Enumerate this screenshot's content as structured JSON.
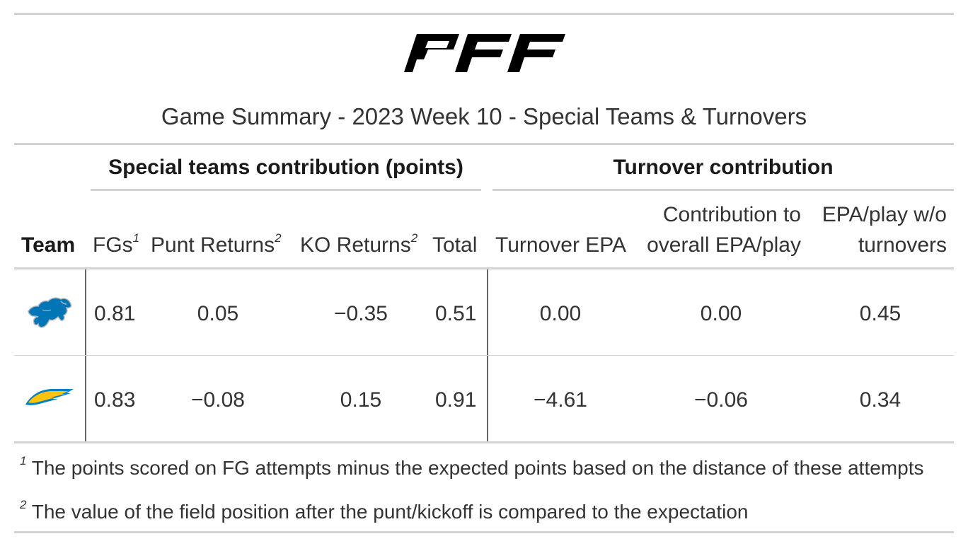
{
  "brand": {
    "logo_text": "PFF"
  },
  "title": "Game Summary - 2023 Week 10 - Special Teams & Turnovers",
  "spanners": {
    "special_teams": "Special teams contribution (points)",
    "turnover": "Turnover contribution"
  },
  "columns": {
    "team": "Team",
    "fgs": "FGs",
    "fgs_note": "1",
    "punt_returns": "Punt Returns",
    "punt_returns_note": "2",
    "ko_returns": "KO Returns",
    "ko_returns_note": "2",
    "total": "Total",
    "turnover_epa": "Turnover EPA",
    "contribution_line1": "Contribution to",
    "contribution_line2": "overall EPA/play",
    "epa_wo_line1": "EPA/play w/o",
    "epa_wo_line2": "turnovers"
  },
  "rows": [
    {
      "team_icon": "detroit-lions-logo",
      "fgs": "0.81",
      "punt_returns": "0.05",
      "ko_returns": "−0.35",
      "total": "0.51",
      "turnover_epa": "0.00",
      "contribution": "0.00",
      "epa_wo": "0.45"
    },
    {
      "team_icon": "los-angeles-chargers-logo",
      "fgs": "0.83",
      "punt_returns": "−0.08",
      "ko_returns": "0.15",
      "total": "0.91",
      "turnover_epa": "−4.61",
      "contribution": "−0.06",
      "epa_wo": "0.34"
    }
  ],
  "footnotes": [
    {
      "mark": "1",
      "text": "The points scored on FG attempts minus the expected points based on the distance of these attempts"
    },
    {
      "mark": "2",
      "text": "The value of the field position after the punt/kickoff is compared to the expectation"
    }
  ],
  "colors": {
    "lions_blue": "#0076B6",
    "lions_silver": "#B0B7BC",
    "chargers_powder": "#0080C6",
    "chargers_gold": "#FFC20E",
    "rule_gray": "#D3D3D3",
    "text": "#333333"
  }
}
